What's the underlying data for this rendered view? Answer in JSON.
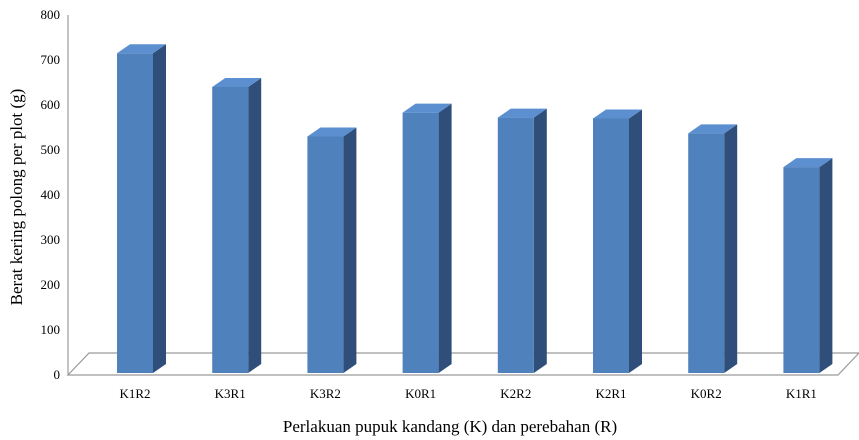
{
  "chart_data": {
    "type": "bar",
    "title": "",
    "xlabel": "Perlakuan pupuk kandang (K) dan perebahan (R)",
    "ylabel": "Berat kering polong per plot (g)",
    "categories": [
      "K1R2",
      "K3R1",
      "K3R2",
      "K0R1",
      "K2R2",
      "K2R1",
      "K0R2",
      "K1R1"
    ],
    "values": [
      735,
      660,
      550,
      603,
      592,
      590,
      557,
      482
    ],
    "ylim": [
      0,
      800
    ],
    "yticks": [
      "0",
      "100",
      "200",
      "300",
      "400",
      "500",
      "600",
      "700",
      "800"
    ],
    "grid": false,
    "legend": "none",
    "style": "3d-column",
    "colors": {
      "bar_front": "#4f81bd",
      "bar_top": "#5b8fd0",
      "bar_side": "#2f4f7a",
      "floor_stroke": "#9a9a9a"
    }
  }
}
